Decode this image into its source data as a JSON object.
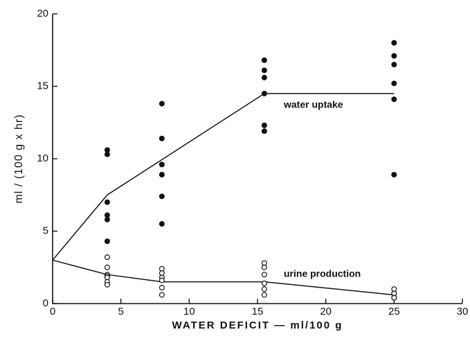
{
  "chart_data": {
    "type": "scatter",
    "x_label": "WATER DEFICIT — ml/100 g",
    "y_label": "ml / (100 g x hr)",
    "xlim": [
      0,
      30
    ],
    "xticks": [
      0,
      5,
      10,
      15,
      20,
      25,
      30
    ],
    "ylim": [
      0,
      20
    ],
    "yticks": [
      0,
      5,
      10,
      15,
      20
    ],
    "series": [
      {
        "name": "water uptake",
        "color": "#111111",
        "marker": "filled",
        "x": [
          4,
          4,
          4,
          4,
          4,
          4,
          8,
          8,
          8,
          8,
          8,
          8,
          15.5,
          15.5,
          15.5,
          15.5,
          15.5,
          15.5,
          25,
          25,
          25,
          25,
          25,
          25
        ],
        "values": [
          10.6,
          10.3,
          7.0,
          6.1,
          5.8,
          4.3,
          13.8,
          11.4,
          9.6,
          8.9,
          7.4,
          5.5,
          16.8,
          16.1,
          15.6,
          14.5,
          12.3,
          11.9,
          18.0,
          17.1,
          16.5,
          15.2,
          14.1,
          8.9
        ],
        "fit_x": [
          0,
          4,
          15.5,
          25
        ],
        "fit_values": [
          3,
          7.5,
          14.5,
          14.5
        ]
      },
      {
        "name": "urine production",
        "color": "#111111",
        "marker": "open",
        "x": [
          4,
          4,
          4,
          4,
          4,
          4,
          4,
          8,
          8,
          8,
          8,
          8,
          8,
          15.5,
          15.5,
          15.5,
          15.5,
          15.5,
          15.5,
          25,
          25,
          25,
          25,
          25
        ],
        "values": [
          3.2,
          2.5,
          2.0,
          1.9,
          1.8,
          1.5,
          1.3,
          2.4,
          2.1,
          1.8,
          1.6,
          1.1,
          0.6,
          2.8,
          2.5,
          2.0,
          1.4,
          1.0,
          0.6,
          1.0,
          0.7,
          0.7,
          0.4,
          0.4
        ],
        "fit_x": [
          0,
          4,
          8,
          15.5,
          25
        ],
        "fit_values": [
          3,
          2,
          1.5,
          1.5,
          0.6
        ]
      }
    ]
  }
}
